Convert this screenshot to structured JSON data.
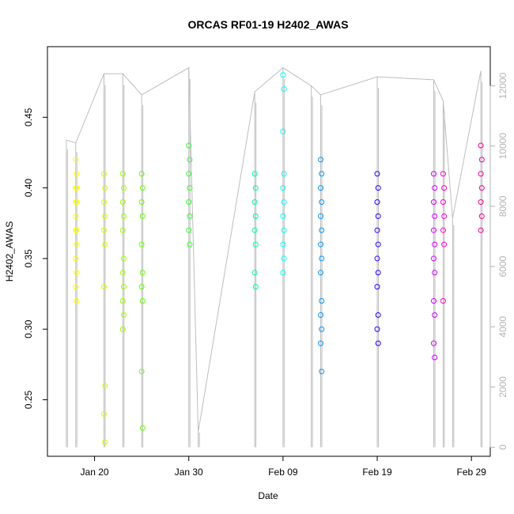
{
  "chart_data": {
    "type": "scatter",
    "title": "ORCAS RF01-19 H2402_AWAS",
    "xlabel": "Date",
    "ylabel": "H2402_AWAS",
    "xlim": [
      "2016-01-15",
      "2016-03-02"
    ],
    "ylim": [
      0.21,
      0.5
    ],
    "y2lim": [
      -300,
      13300
    ],
    "x_ticks": [
      "Jan 20",
      "Jan 30",
      "Feb 09",
      "Feb 19",
      "Feb 29"
    ],
    "x_tick_dates": [
      "2016-01-20",
      "2016-01-30",
      "2016-02-09",
      "2016-02-19",
      "2016-02-29"
    ],
    "y_ticks": [
      0.25,
      0.3,
      0.35,
      0.4,
      0.45
    ],
    "y_tick_labels": [
      "0.25",
      "0.30",
      "0.35",
      "0.40",
      "0.45"
    ],
    "y2_ticks": [
      0,
      2000,
      4000,
      6000,
      8000,
      10000,
      12000
    ],
    "y2_tick_labels": [
      "0",
      "2000",
      "4000",
      "6000",
      "8000",
      "10000",
      "12000"
    ],
    "grid": false,
    "background_series_color": "#bebebe",
    "series": [
      {
        "date": "2016-01-18",
        "color": "#ffff00",
        "values": [
          0.42,
          0.41,
          0.4,
          0.4,
          0.39,
          0.39,
          0.38,
          0.37,
          0.37,
          0.36,
          0.35,
          0.34,
          0.33,
          0.32
        ]
      },
      {
        "date": "2016-01-21",
        "color": "#ccff00",
        "values": [
          0.41,
          0.4,
          0.39,
          0.38,
          0.37,
          0.36,
          0.33,
          0.26,
          0.24,
          0.22
        ]
      },
      {
        "date": "2016-01-23",
        "color": "#99ff00",
        "values": [
          0.41,
          0.4,
          0.39,
          0.38,
          0.37,
          0.35,
          0.34,
          0.33,
          0.32,
          0.31,
          0.3
        ]
      },
      {
        "date": "2016-01-25",
        "color": "#66ff00",
        "values": [
          0.41,
          0.4,
          0.39,
          0.38,
          0.36,
          0.34,
          0.33,
          0.32,
          0.27,
          0.23
        ]
      },
      {
        "date": "2016-01-30",
        "color": "#33ff33",
        "values": [
          0.43,
          0.42,
          0.41,
          0.4,
          0.39,
          0.38,
          0.37,
          0.36
        ]
      },
      {
        "date": "2016-02-06",
        "color": "#00ff99",
        "values": [
          0.41,
          0.4,
          0.39,
          0.38,
          0.37,
          0.36,
          0.34,
          0.33
        ]
      },
      {
        "date": "2016-02-09",
        "color": "#00ffff",
        "values": [
          0.48,
          0.47,
          0.44,
          0.41,
          0.4,
          0.39,
          0.38,
          0.37,
          0.36,
          0.35,
          0.34
        ]
      },
      {
        "date": "2016-02-13",
        "color": "#0099ff",
        "values": [
          0.42,
          0.41,
          0.4,
          0.39,
          0.38,
          0.37,
          0.36,
          0.35,
          0.34,
          0.32,
          0.31,
          0.3,
          0.29,
          0.27
        ]
      },
      {
        "date": "2016-02-19",
        "color": "#3300ff",
        "values": [
          0.41,
          0.4,
          0.39,
          0.38,
          0.37,
          0.36,
          0.35,
          0.34,
          0.33,
          0.31,
          0.3,
          0.29
        ]
      },
      {
        "date": "2016-02-25",
        "color": "#cc00ff",
        "values": [
          0.41,
          0.4,
          0.39,
          0.38,
          0.37,
          0.36,
          0.35,
          0.34,
          0.32,
          0.31,
          0.29,
          0.28
        ]
      },
      {
        "date": "2016-02-26",
        "color": "#ff00cc",
        "values": [
          0.41,
          0.4,
          0.39,
          0.38,
          0.37,
          0.36,
          0.32
        ]
      },
      {
        "date": "2016-03-01",
        "color": "#ff0099",
        "values": [
          0.43,
          0.42,
          0.41,
          0.4,
          0.39,
          0.38,
          0.37
        ]
      }
    ],
    "altitude_trace_dates": [
      "2016-01-17",
      "2016-01-18",
      "2016-01-21",
      "2016-01-23",
      "2016-01-25",
      "2016-01-30",
      "2016-01-31",
      "2016-02-06",
      "2016-02-09",
      "2016-02-12",
      "2016-02-13",
      "2016-02-19",
      "2016-02-25",
      "2016-02-26",
      "2016-02-27",
      "2016-03-01"
    ],
    "altitude_trace_values": [
      10200,
      10100,
      12400,
      12400,
      11700,
      12600,
      500,
      11800,
      12600,
      12000,
      11700,
      12300,
      12200,
      11500,
      7600,
      12500
    ]
  }
}
